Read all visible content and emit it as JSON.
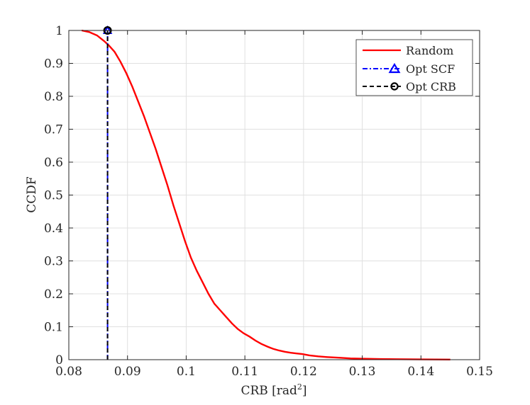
{
  "chart_data": {
    "type": "line",
    "title": "",
    "xlabel": "CRB [rad",
    "xlabel_sup": "2",
    "xlabel_close": "]",
    "ylabel": "CCDF",
    "xlim": [
      0.08,
      0.15
    ],
    "ylim": [
      0,
      1
    ],
    "xticks": [
      0.08,
      0.09,
      0.1,
      0.11,
      0.12,
      0.13,
      0.14,
      0.15
    ],
    "xtick_labels": [
      "0.08",
      "0.09",
      "0.1",
      "0.11",
      "0.12",
      "0.13",
      "0.14",
      "0.15"
    ],
    "yticks": [
      0,
      0.1,
      0.2,
      0.3,
      0.4,
      0.5,
      0.6,
      0.7,
      0.8,
      0.9,
      1
    ],
    "ytick_labels": [
      "0",
      "0.1",
      "0.2",
      "0.3",
      "0.4",
      "0.5",
      "0.6",
      "0.7",
      "0.8",
      "0.9",
      "1"
    ],
    "grid": true,
    "legend_position": "top-right",
    "series": [
      {
        "name": "Random",
        "color": "#ff0000",
        "style": "solid",
        "marker": "none",
        "x": [
          0.0822,
          0.0835,
          0.0848,
          0.086,
          0.0868,
          0.0878,
          0.0888,
          0.0898,
          0.0908,
          0.0918,
          0.0928,
          0.0938,
          0.0948,
          0.0958,
          0.0968,
          0.0978,
          0.0988,
          0.0998,
          0.1008,
          0.1018,
          0.1028,
          0.1038,
          0.1048,
          0.1058,
          0.1068,
          0.1078,
          0.1088,
          0.1098,
          0.1108,
          0.1118,
          0.1128,
          0.1138,
          0.1148,
          0.1158,
          0.1168,
          0.1178,
          0.1188,
          0.1198,
          0.121,
          0.1225,
          0.124,
          0.126,
          0.128,
          0.13,
          0.133,
          0.136,
          0.14,
          0.145
        ],
        "y": [
          1.0,
          0.995,
          0.985,
          0.968,
          0.955,
          0.935,
          0.905,
          0.87,
          0.83,
          0.785,
          0.74,
          0.69,
          0.64,
          0.585,
          0.53,
          0.47,
          0.415,
          0.36,
          0.31,
          0.27,
          0.235,
          0.2,
          0.17,
          0.15,
          0.13,
          0.11,
          0.093,
          0.08,
          0.07,
          0.058,
          0.048,
          0.04,
          0.033,
          0.028,
          0.024,
          0.021,
          0.019,
          0.017,
          0.013,
          0.01,
          0.008,
          0.006,
          0.004,
          0.003,
          0.002,
          0.0015,
          0.001,
          0.0005
        ]
      },
      {
        "name": "Opt SCF",
        "color": "#0000ff",
        "style": "dash-dot",
        "marker": "triangle",
        "x": [
          0.0866,
          0.0866
        ],
        "y": [
          0,
          1
        ]
      },
      {
        "name": "Opt CRB",
        "color": "#000000",
        "style": "dashed",
        "marker": "circle",
        "x": [
          0.0866,
          0.0866
        ],
        "y": [
          0,
          1
        ]
      }
    ]
  }
}
